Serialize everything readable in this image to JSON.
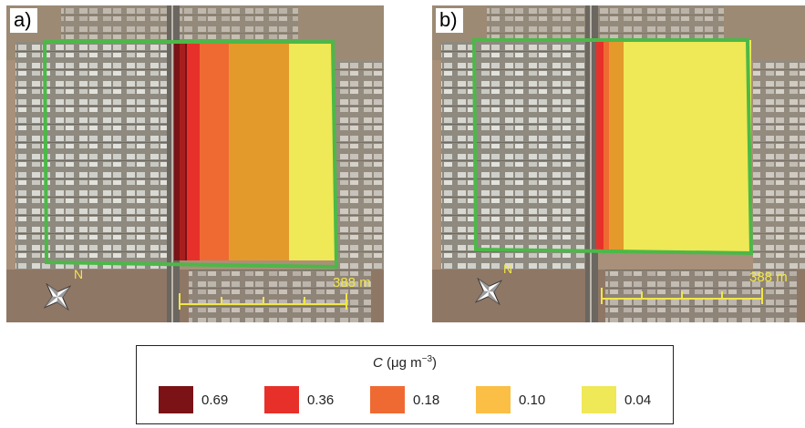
{
  "panels": [
    {
      "label": "a)",
      "scale_text": "388 m",
      "north_label": "N"
    },
    {
      "label": "b)",
      "scale_text": "388 m",
      "north_label": "N"
    }
  ],
  "legend": {
    "title_var": "C",
    "title_unit": " (μg m",
    "title_exp": "−3",
    "title_close": ")",
    "items": [
      {
        "value": "0.69",
        "color": "#7a1216"
      },
      {
        "value": "0.36",
        "color": "#e8302a"
      },
      {
        "value": "0.18",
        "color": "#ef6a33"
      },
      {
        "value": "0.10",
        "color": "#fbbf45"
      },
      {
        "value": "0.04",
        "color": "#efe857"
      }
    ]
  },
  "colors": {
    "domain_outline": "#4cb848",
    "scale_bar": "#f0e64a",
    "band_dark": "#a81e1e",
    "band_orange_dark": "#e49a2a"
  }
}
